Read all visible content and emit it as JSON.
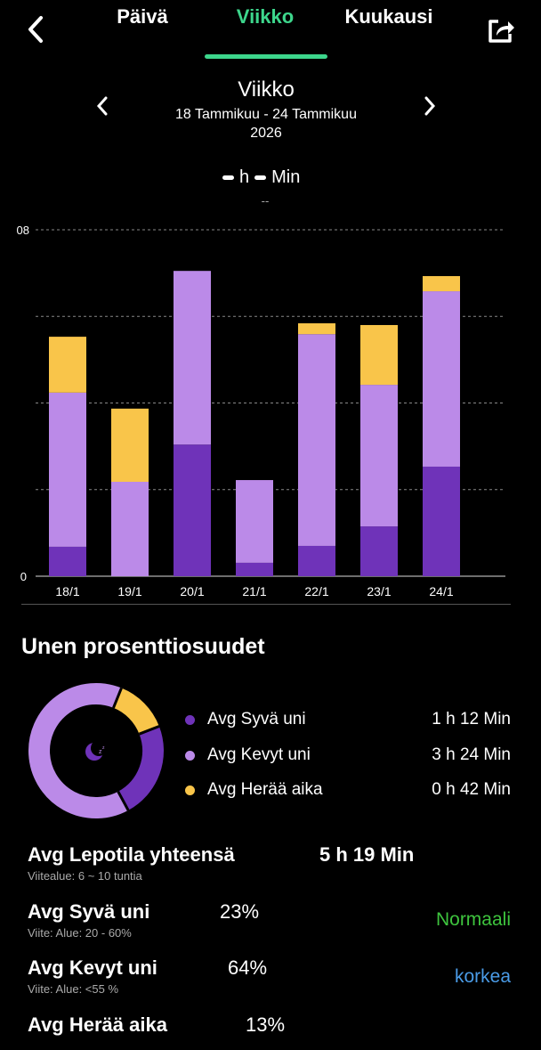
{
  "header": {
    "tabs": [
      "Päivä",
      "Viikko",
      "Kuukausi"
    ],
    "active_tab": 1,
    "accent": "#3dd68c"
  },
  "period": {
    "title": "Viikko",
    "range": "18 Tammikuu - 24 Tammikuu",
    "year": "2026"
  },
  "summary": {
    "h_label": "h",
    "min_label": "Min",
    "sub": "--"
  },
  "chart_data": {
    "type": "bar",
    "stacked": true,
    "categories": [
      "18/1",
      "19/1",
      "20/1",
      "21/1",
      "22/1",
      "23/1",
      "24/1"
    ],
    "series": [
      {
        "name": "Syvä uni",
        "color": "#6f33b9",
        "values": [
          0.68,
          0,
          3.04,
          0.31,
          0.7,
          1.15,
          2.53
        ]
      },
      {
        "name": "Kevyt uni",
        "color": "#bb8ae8",
        "values": [
          3.56,
          2.18,
          4.01,
          1.91,
          4.89,
          3.27,
          4.05
        ]
      },
      {
        "name": "Herää aika",
        "color": "#f9c54a",
        "values": [
          1.29,
          1.69,
          0,
          0,
          0.25,
          1.38,
          0.35
        ]
      }
    ],
    "ylim": [
      0,
      8
    ],
    "ytick_labels": [
      "0",
      "08"
    ],
    "grid": true
  },
  "section_title": "Unen prosenttiosuudet",
  "donut": {
    "segments": [
      {
        "name": "awake",
        "pct": 13,
        "color": "#f9c54a"
      },
      {
        "name": "deep",
        "pct": 23,
        "color": "#6f33b9"
      },
      {
        "name": "light",
        "pct": 64,
        "color": "#bb8ae8"
      }
    ]
  },
  "legend": [
    {
      "label": "Avg Syvä uni",
      "value": "1 h 12 Min",
      "color": "#6f33b9"
    },
    {
      "label": "Avg Kevyt uni",
      "value": "3 h 24 Min",
      "color": "#bb8ae8"
    },
    {
      "label": "Avg Herää aika",
      "value": "0 h 42 Min",
      "color": "#f9c54a"
    }
  ],
  "stats": [
    {
      "title": "Avg Lepotila yhteensä",
      "sub": "Viitealue: 6 ~ 10 tuntia",
      "value": "5 h 19 Min",
      "badge": ""
    },
    {
      "title": "Avg Syvä uni",
      "sub": "Viite: Alue: 20 - 60%",
      "value": "23%",
      "badge": "Normaali",
      "badge_color": "#3ec43e"
    },
    {
      "title": "Avg Kevyt uni",
      "sub": "Viite: Alue: <55 %",
      "value": "64%",
      "badge": "korkea",
      "badge_color": "#4a9be6"
    },
    {
      "title": "Avg Herää aika",
      "sub": "",
      "value": "13%",
      "badge": ""
    }
  ]
}
